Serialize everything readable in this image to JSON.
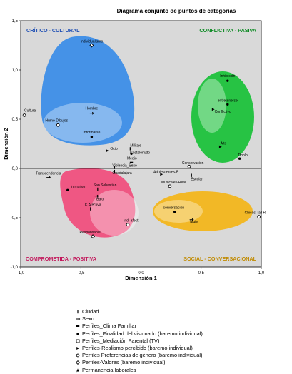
{
  "chart_data": {
    "type": "scatter",
    "title": "Diagrama conjunto de puntos de categorías",
    "xlabel": "Dimensión 1",
    "ylabel": "Dimensión 2",
    "xlim": [
      -1.0,
      1.0
    ],
    "ylim": [
      -1.0,
      1.5
    ],
    "x_ticks": [
      "-1,0",
      "-0,5",
      "0,0",
      "0,5",
      "1,0"
    ],
    "y_ticks": [
      "-1,0",
      "-0,5",
      "0,0",
      "0,5",
      "1,0",
      "1,5"
    ],
    "grid": false,
    "background_color": "#d9d9d9",
    "regions": [
      {
        "label": "CRÍTICO - CULTURAL",
        "color": "#3d8ee8",
        "label_color": "#1f4fb4"
      },
      {
        "label": "CONFLICTIVA - PASIVA",
        "color": "#1ec23c",
        "label_color": "#0b8a22"
      },
      {
        "label": "COMPROMETIDA - POSITIVA",
        "color": "#f0507e",
        "label_color": "#c2185b"
      },
      {
        "label": "SOCIAL - CONVERSACIONAL",
        "color": "#f3b61c",
        "label_color": "#c08a00"
      }
    ],
    "points": [
      {
        "label": "Individualismo",
        "x": -0.41,
        "y": 1.25,
        "marker": "diamond"
      },
      {
        "label": "Cultural",
        "x": -0.97,
        "y": 0.54,
        "marker": "circle-open"
      },
      {
        "label": "Humo-Dibujos",
        "x": -0.69,
        "y": 0.44,
        "marker": "circle-open"
      },
      {
        "label": "Hombre",
        "x": -0.41,
        "y": 0.56,
        "marker": "arrow"
      },
      {
        "label": "Informarse",
        "x": -0.41,
        "y": 0.32,
        "marker": "dot"
      },
      {
        "label": "Ocio",
        "x": -0.28,
        "y": 0.18,
        "marker": "tri"
      },
      {
        "label": "Militaje",
        "x": -0.09,
        "y": 0.2,
        "marker": "tick"
      },
      {
        "label": "Costalonudo",
        "x": -0.08,
        "y": 0.15,
        "marker": "dot"
      },
      {
        "label": "Medio",
        "x": -0.08,
        "y": 0.06,
        "marker": "bar"
      },
      {
        "label": "Violencia_Sexo",
        "x": -0.22,
        "y": 0.01,
        "marker": "tick"
      },
      {
        "label": "Guadalajara",
        "x": -0.22,
        "y": -0.03,
        "marker": "tick"
      },
      {
        "label": "Adolescentes-R",
        "x": 0.17,
        "y": -0.06,
        "marker": "tri"
      },
      {
        "label": "Conservación",
        "x": 0.4,
        "y": 0.02,
        "marker": "circle-open"
      },
      {
        "label": "Escolar",
        "x": 0.42,
        "y": -0.07,
        "marker": "tick"
      },
      {
        "label": "Musicales-Real",
        "x": 0.24,
        "y": -0.18,
        "marker": "circle-open"
      },
      {
        "label": "Inhibición",
        "x": 0.72,
        "y": 0.89,
        "marker": "dot"
      },
      {
        "label": "entretenerse",
        "x": 0.72,
        "y": 0.65,
        "marker": "dot"
      },
      {
        "label": "Conflictivo",
        "x": 0.6,
        "y": 0.6,
        "marker": "tri"
      },
      {
        "label": "Alto",
        "x": 0.66,
        "y": 0.22,
        "marker": "tri"
      },
      {
        "label": "Doblo",
        "x": 0.82,
        "y": 0.1,
        "marker": "dot"
      },
      {
        "label": "Transcendencia",
        "x": -0.77,
        "y": -0.09,
        "marker": "arrow"
      },
      {
        "label": "formativo",
        "x": -0.61,
        "y": -0.22,
        "marker": "dot"
      },
      {
        "label": "San Sebastián",
        "x": -0.36,
        "y": -0.21,
        "marker": "tick"
      },
      {
        "label": "Bajo",
        "x": -0.37,
        "y": -0.28,
        "marker": "arrow"
      },
      {
        "label": "C.Afectiva",
        "x": -0.42,
        "y": -0.41,
        "marker": "tick"
      },
      {
        "label": "Ind. afect",
        "x": -0.11,
        "y": -0.57,
        "marker": "circle-open"
      },
      {
        "label": "Responsable",
        "x": -0.4,
        "y": -0.69,
        "marker": "diamond"
      },
      {
        "label": "conversación",
        "x": 0.28,
        "y": -0.44,
        "marker": "dot"
      },
      {
        "label": "Mujer",
        "x": 0.42,
        "y": -0.52,
        "marker": "arrow"
      },
      {
        "label": "Chicos-Tall R",
        "x": 0.98,
        "y": -0.49,
        "marker": "circle-open"
      }
    ],
    "legend": [
      {
        "label": "Ciudad",
        "marker": "tick"
      },
      {
        "label": "Sexo",
        "marker": "arrow"
      },
      {
        "label": "Perfiles_Clima Familiar",
        "marker": "bar"
      },
      {
        "label": "Perfiles_Finalidad del visionado (baremo individual)",
        "marker": "dot"
      },
      {
        "label": "Perfiles_Mediación Parental (TV)",
        "marker": "square-open"
      },
      {
        "label": "Perfiles-Realismo percibido (baremo individual)",
        "marker": "tri"
      },
      {
        "label": "Perfiles Preferencias de género (baremo individual)",
        "marker": "circle-open"
      },
      {
        "label": "Perfiles-Valores (baremo individual)",
        "marker": "diamond"
      },
      {
        "label": "Permanencia laborales",
        "marker": "star"
      }
    ]
  }
}
